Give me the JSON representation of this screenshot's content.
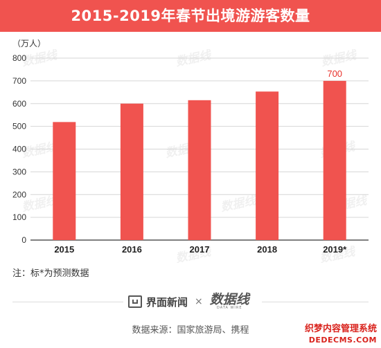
{
  "header": {
    "title": "2015-2019年春节出境游游客数量"
  },
  "chart_data": {
    "type": "bar",
    "title": "2015-2019年春节出境游游客数量",
    "unit": "（万人）",
    "categories": [
      "2015",
      "2016",
      "2017",
      "2018",
      "2019*"
    ],
    "values": [
      519,
      600,
      615,
      653,
      700
    ],
    "data_labels": [
      {
        "index": 4,
        "text": "700"
      }
    ],
    "ylim": [
      0,
      800
    ],
    "yticks": [
      0,
      100,
      200,
      300,
      400,
      500,
      600,
      700,
      800
    ],
    "grid": true,
    "legend": "none",
    "colors": {
      "bar": "#f0534f",
      "label": "#e8302a"
    }
  },
  "footnote": "注：标*为预测数据",
  "brand": {
    "name": "界面新闻",
    "times": "×",
    "partner": "数据线",
    "partner_sub": "DATA WIRE"
  },
  "source": "数据来源：国家旅游局、携程",
  "corner": {
    "line1": "织梦内容管理系统",
    "line2": "DEDECMS.COM"
  },
  "watermark_text": "数据线"
}
